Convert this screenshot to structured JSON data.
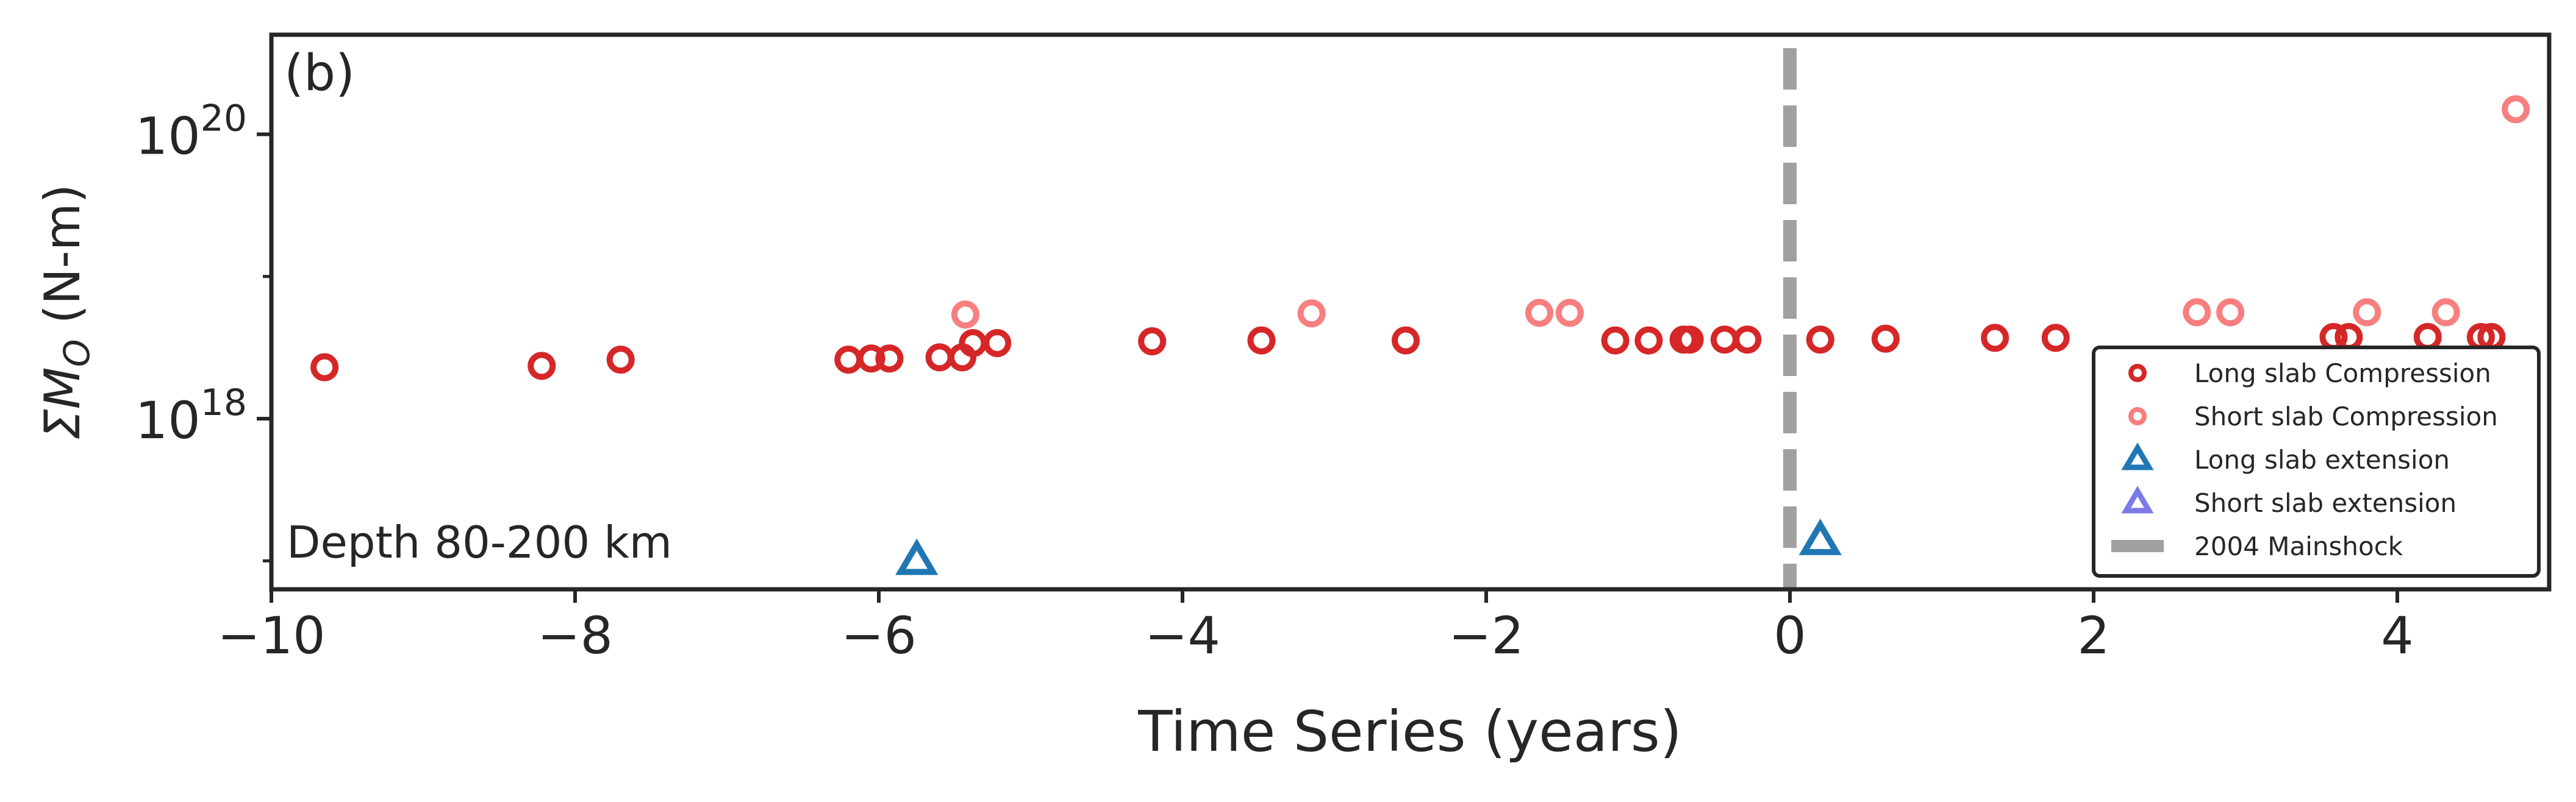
{
  "chart_data": {
    "type": "scatter",
    "panel_label": "(b)",
    "annotation": "Depth 80-200 km",
    "xlabel": "Time Series (years)",
    "ylabel_sigma": "Σ",
    "ylabel_M": "M",
    "ylabel_sub": "O",
    "ylabel_unit": " (N-m)",
    "xlim": [
      -10,
      5
    ],
    "ylim_log10": [
      16.8,
      20.7
    ],
    "y_scale": "log",
    "x_ticks": [
      {
        "value": -10,
        "label": "−10"
      },
      {
        "value": -8,
        "label": "−8"
      },
      {
        "value": -6,
        "label": "−6"
      },
      {
        "value": -4,
        "label": "−4"
      },
      {
        "value": -2,
        "label": "−2"
      },
      {
        "value": 0,
        "label": "0"
      },
      {
        "value": 2,
        "label": "2"
      },
      {
        "value": 4,
        "label": "4"
      }
    ],
    "y_ticks": [
      {
        "value_log10": 20,
        "base": "10",
        "exp": "20"
      },
      {
        "value_log10": 18,
        "base": "10",
        "exp": "18"
      }
    ],
    "mainshock": {
      "x": 0,
      "name": "2004 Mainshock",
      "color": "#a0a0a0"
    },
    "legend_position": "lower-right",
    "series": [
      {
        "name": "Long slab Compression",
        "marker": "circle",
        "color": "#d62728",
        "points": [
          {
            "x": -9.65,
            "y": 2.3e+18
          },
          {
            "x": -8.22,
            "y": 2.35e+18
          },
          {
            "x": -7.7,
            "y": 2.6e+18
          },
          {
            "x": -6.2,
            "y": 2.6e+18
          },
          {
            "x": -6.05,
            "y": 2.65e+18
          },
          {
            "x": -5.93,
            "y": 2.65e+18
          },
          {
            "x": -5.6,
            "y": 2.7e+18
          },
          {
            "x": -5.45,
            "y": 2.7e+18
          },
          {
            "x": -5.38,
            "y": 3.4e+18
          },
          {
            "x": -5.22,
            "y": 3.4e+18
          },
          {
            "x": -4.2,
            "y": 3.5e+18
          },
          {
            "x": -3.48,
            "y": 3.55e+18
          },
          {
            "x": -2.53,
            "y": 3.55e+18
          },
          {
            "x": -1.15,
            "y": 3.55e+18
          },
          {
            "x": -0.93,
            "y": 3.55e+18
          },
          {
            "x": -0.7,
            "y": 3.6e+18
          },
          {
            "x": -0.66,
            "y": 3.6e+18
          },
          {
            "x": -0.43,
            "y": 3.6e+18
          },
          {
            "x": -0.28,
            "y": 3.6e+18
          },
          {
            "x": 0.2,
            "y": 3.6e+18
          },
          {
            "x": 0.63,
            "y": 3.65e+18
          },
          {
            "x": 1.35,
            "y": 3.7e+18
          },
          {
            "x": 1.75,
            "y": 3.7e+18
          },
          {
            "x": 3.58,
            "y": 3.75e+18
          },
          {
            "x": 3.68,
            "y": 3.75e+18
          },
          {
            "x": 4.2,
            "y": 3.75e+18
          },
          {
            "x": 4.55,
            "y": 3.75e+18
          },
          {
            "x": 4.62,
            "y": 3.75e+18
          }
        ]
      },
      {
        "name": "Short slab Compression",
        "marker": "circle",
        "color": "#f77f7f",
        "points": [
          {
            "x": -5.43,
            "y": 5.4e+18
          },
          {
            "x": -3.15,
            "y": 5.5e+18
          },
          {
            "x": -1.65,
            "y": 5.55e+18
          },
          {
            "x": -1.45,
            "y": 5.55e+18
          },
          {
            "x": 2.68,
            "y": 5.6e+18
          },
          {
            "x": 2.9,
            "y": 5.6e+18
          },
          {
            "x": 3.8,
            "y": 5.6e+18
          },
          {
            "x": 4.32,
            "y": 5.6e+18
          },
          {
            "x": 4.78,
            "y": 1.5e+20
          }
        ]
      },
      {
        "name": "Long slab extension",
        "marker": "triangle",
        "color": "#1f77b4",
        "points": [
          {
            "x": -5.75,
            "y": 1e+17
          },
          {
            "x": 0.2,
            "y": 1.38e+17
          }
        ]
      },
      {
        "name": "Short slab extension",
        "marker": "triangle",
        "color": "#7b7be8",
        "points": []
      }
    ]
  }
}
